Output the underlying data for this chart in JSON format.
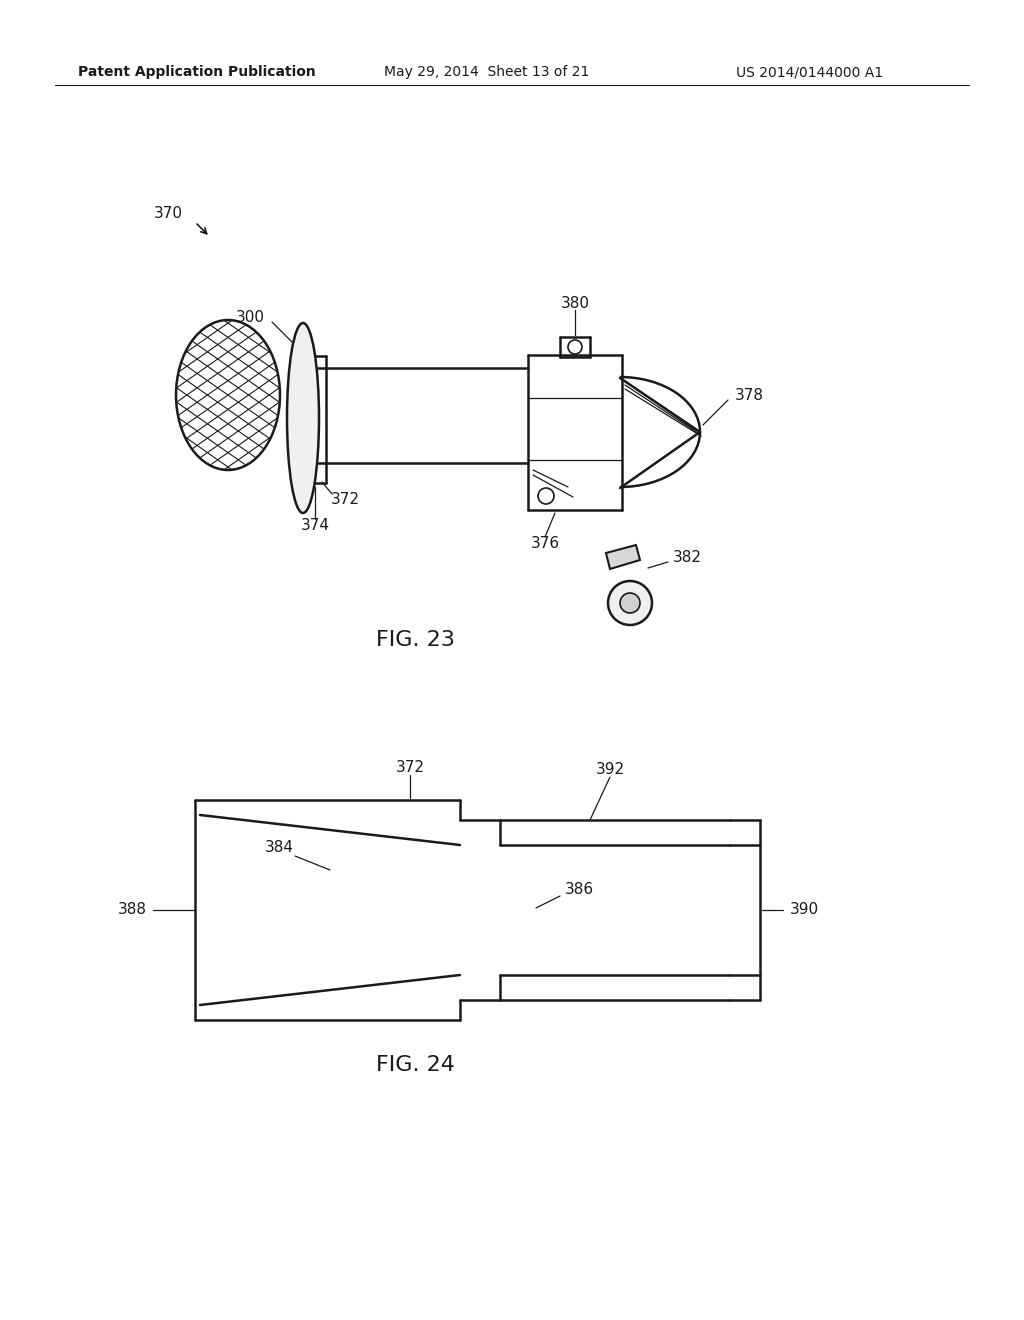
{
  "bg_color": "#ffffff",
  "header_text": "Patent Application Publication",
  "header_date": "May 29, 2014  Sheet 13 of 21",
  "header_patent": "US 2014/0144000 A1",
  "fig23_label": "FIG. 23",
  "fig24_label": "FIG. 24",
  "label_370": "370",
  "label_300": "300",
  "label_372a": "372",
  "label_374": "374",
  "label_376": "376",
  "label_378": "378",
  "label_380": "380",
  "label_382": "382",
  "label_372b": "372",
  "label_384": "384",
  "label_386": "386",
  "label_388": "388",
  "label_390": "390",
  "label_392": "392",
  "line_color": "#1a1a1a",
  "text_color": "#1a1a1a",
  "lw_main": 1.8,
  "lw_thin": 0.9,
  "fontsize_label": 11,
  "fontsize_fig": 16,
  "fontsize_header": 10
}
